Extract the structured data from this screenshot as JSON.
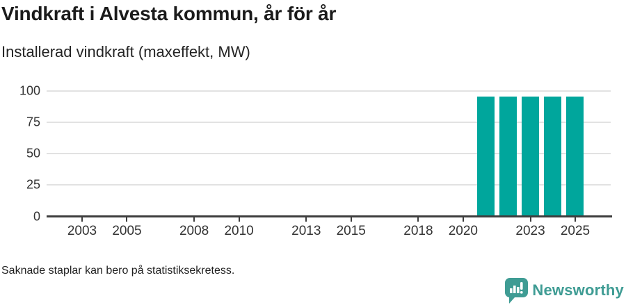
{
  "title": "Vindkraft i Alvesta kommun, år för år",
  "subtitle": "Installerad vindkraft (maxeffekt, MW)",
  "footnote": "Saknade staplar kan bero på statistiksekretess.",
  "brand": {
    "name": "Newsworthy",
    "icon": "newsworthy-speech-bubble-bar-chart-icon",
    "color": "#3f9c94"
  },
  "colors": {
    "bar": "#00a69c",
    "grid": "#e2e2e2",
    "axis": "#3d3d3d",
    "label": "#333333"
  },
  "chart_data": {
    "type": "bar",
    "title": "Vindkraft i Alvesta kommun, år för år",
    "subtitle": "Installerad vindkraft (maxeffekt, MW)",
    "xlabel": "",
    "ylabel": "Installerad vindkraft (maxeffekt, MW)",
    "x": [
      2021,
      2022,
      2023,
      2024,
      2025
    ],
    "values": [
      95,
      95,
      95,
      95,
      95
    ],
    "bar_color": "#00a69c",
    "ylim": [
      0,
      100
    ],
    "yticks": [
      0,
      25,
      50,
      75,
      100
    ],
    "xticks": [
      2003,
      2005,
      2008,
      2010,
      2013,
      2015,
      2018,
      2020,
      2023,
      2025
    ],
    "xlim": [
      2001.4,
      2026.6
    ],
    "grid": true,
    "legend": "none",
    "missing_years_note": "Saknade staplar kan bero på statistiksekretess."
  }
}
